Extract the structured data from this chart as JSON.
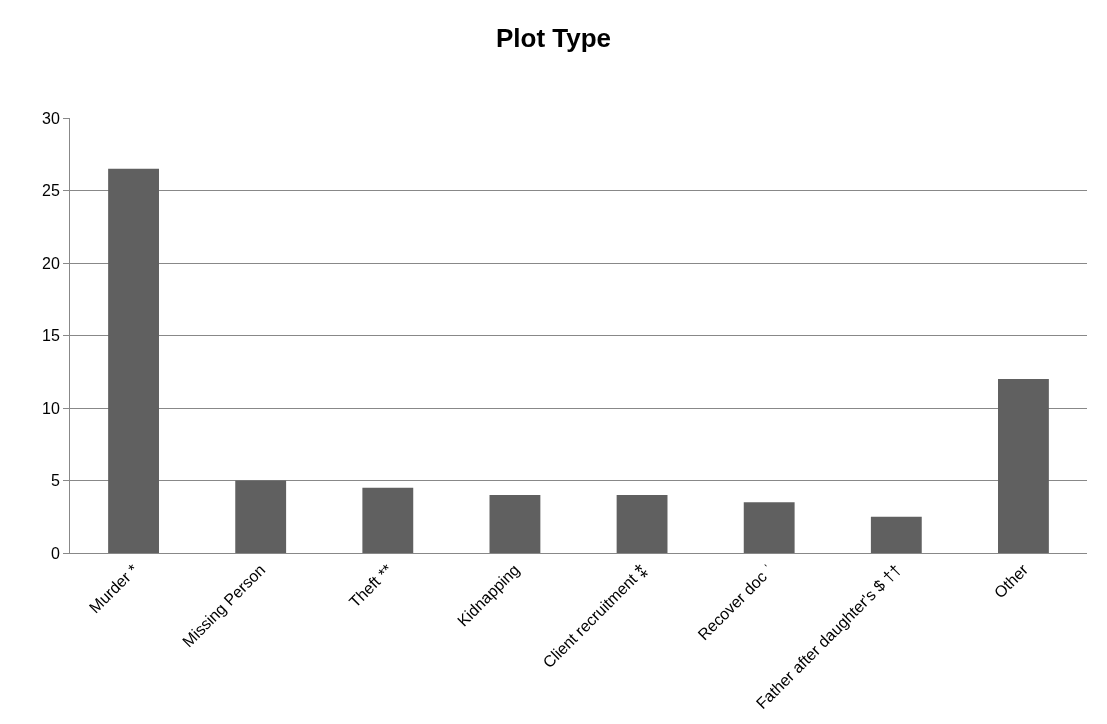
{
  "chart_data": {
    "type": "bar",
    "title": "Plot Type",
    "categories": [
      "Murder *",
      "Missing Person",
      "Theft **",
      "Kidnapping",
      "Client recruitment ⁑",
      "Recover doc ˈ",
      "Father after daughter's $ ††",
      "Other"
    ],
    "values": [
      26.5,
      5,
      4.5,
      4,
      4,
      3.5,
      2.5,
      12
    ],
    "color": "#606060",
    "ylim": [
      0,
      30
    ],
    "yticks": [
      0,
      5,
      10,
      15,
      20,
      25,
      30
    ],
    "grid": "y"
  }
}
